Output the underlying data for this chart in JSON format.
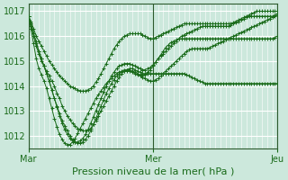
{
  "bg_color": "#cce8dc",
  "grid_color": "#ffffff",
  "line_color": "#1a6b1a",
  "xlabel": "Pression niveau de la mer( hPa )",
  "ylim": [
    1011.5,
    1017.3
  ],
  "yticks": [
    1012,
    1013,
    1014,
    1015,
    1016,
    1017
  ],
  "xtick_labels": [
    "Mar",
    "Mer",
    "Jeu"
  ],
  "xtick_positions": [
    0,
    48,
    96
  ],
  "xlim": [
    0,
    96
  ],
  "vline_positions": [
    0,
    48,
    96
  ],
  "n_total": 97,
  "series": [
    [
      1016.8,
      1016.6,
      1016.3,
      1016.0,
      1015.8,
      1015.6,
      1015.4,
      1015.2,
      1015.0,
      1014.85,
      1014.7,
      1014.55,
      1014.4,
      1014.3,
      1014.2,
      1014.1,
      1014.0,
      1013.95,
      1013.9,
      1013.85,
      1013.8,
      1013.8,
      1013.8,
      1013.85,
      1013.9,
      1014.0,
      1014.15,
      1014.3,
      1014.5,
      1014.7,
      1014.9,
      1015.1,
      1015.3,
      1015.5,
      1015.65,
      1015.8,
      1015.9,
      1016.0,
      1016.05,
      1016.1,
      1016.1,
      1016.1,
      1016.1,
      1016.1,
      1016.05,
      1016.0,
      1015.95,
      1015.9,
      1015.9,
      1015.95,
      1016.0,
      1016.05,
      1016.1,
      1016.15,
      1016.2,
      1016.25,
      1016.3,
      1016.35,
      1016.4,
      1016.45,
      1016.5,
      1016.5,
      1016.5,
      1016.5,
      1016.5,
      1016.5,
      1016.5,
      1016.5,
      1016.5,
      1016.5,
      1016.5,
      1016.5,
      1016.5,
      1016.5,
      1016.5,
      1016.5,
      1016.5,
      1016.5,
      1016.5,
      1016.55,
      1016.6,
      1016.65,
      1016.7,
      1016.75,
      1016.8,
      1016.85,
      1016.9,
      1016.95,
      1017.0,
      1017.0,
      1017.0,
      1017.0,
      1017.0,
      1017.0,
      1017.0,
      1017.0,
      1017.0
    ],
    [
      1016.8,
      1016.4,
      1016.0,
      1015.6,
      1015.3,
      1015.0,
      1014.8,
      1014.6,
      1014.4,
      1014.2,
      1014.0,
      1013.7,
      1013.5,
      1013.2,
      1013.0,
      1012.8,
      1012.65,
      1012.5,
      1012.4,
      1012.3,
      1012.25,
      1012.2,
      1012.2,
      1012.25,
      1012.3,
      1012.45,
      1012.6,
      1012.8,
      1013.0,
      1013.2,
      1013.4,
      1013.6,
      1013.8,
      1014.0,
      1014.2,
      1014.35,
      1014.5,
      1014.6,
      1014.65,
      1014.7,
      1014.7,
      1014.65,
      1014.6,
      1014.55,
      1014.5,
      1014.5,
      1014.5,
      1014.5,
      1014.5,
      1014.5,
      1014.5,
      1014.5,
      1014.5,
      1014.5,
      1014.5,
      1014.5,
      1014.5,
      1014.5,
      1014.5,
      1014.5,
      1014.5,
      1014.45,
      1014.4,
      1014.35,
      1014.3,
      1014.25,
      1014.2,
      1014.15,
      1014.1,
      1014.1,
      1014.1,
      1014.1,
      1014.1,
      1014.1,
      1014.1,
      1014.1,
      1014.1,
      1014.1,
      1014.1,
      1014.1,
      1014.1,
      1014.1,
      1014.1,
      1014.1,
      1014.1,
      1014.1,
      1014.1,
      1014.1,
      1014.1,
      1014.1,
      1014.1,
      1014.1,
      1014.1,
      1014.1,
      1014.1,
      1014.1,
      1014.1
    ],
    [
      1016.8,
      1016.5,
      1016.1,
      1015.7,
      1015.4,
      1015.1,
      1014.8,
      1014.5,
      1014.2,
      1013.85,
      1013.5,
      1013.2,
      1012.9,
      1012.6,
      1012.4,
      1012.2,
      1012.0,
      1011.85,
      1011.75,
      1011.7,
      1011.7,
      1011.75,
      1011.85,
      1012.0,
      1012.2,
      1012.45,
      1012.7,
      1012.95,
      1013.2,
      1013.45,
      1013.7,
      1013.9,
      1014.1,
      1014.25,
      1014.4,
      1014.5,
      1014.55,
      1014.6,
      1014.6,
      1014.6,
      1014.55,
      1014.5,
      1014.45,
      1014.4,
      1014.35,
      1014.3,
      1014.25,
      1014.2,
      1014.2,
      1014.25,
      1014.3,
      1014.4,
      1014.5,
      1014.6,
      1014.7,
      1014.8,
      1014.9,
      1015.0,
      1015.1,
      1015.2,
      1015.3,
      1015.4,
      1015.45,
      1015.5,
      1015.5,
      1015.5,
      1015.5,
      1015.5,
      1015.5,
      1015.5,
      1015.55,
      1015.6,
      1015.65,
      1015.7,
      1015.75,
      1015.8,
      1015.85,
      1015.9,
      1015.95,
      1016.0,
      1016.05,
      1016.1,
      1016.15,
      1016.2,
      1016.25,
      1016.3,
      1016.35,
      1016.4,
      1016.45,
      1016.5,
      1016.55,
      1016.6,
      1016.65,
      1016.7,
      1016.75,
      1016.8,
      1016.85
    ],
    [
      1016.8,
      1016.5,
      1016.1,
      1015.8,
      1015.4,
      1015.1,
      1014.8,
      1014.5,
      1014.2,
      1013.85,
      1013.5,
      1013.15,
      1012.8,
      1012.5,
      1012.25,
      1012.05,
      1011.9,
      1011.8,
      1011.75,
      1011.75,
      1011.8,
      1011.9,
      1012.05,
      1012.25,
      1012.5,
      1012.75,
      1013.0,
      1013.25,
      1013.5,
      1013.75,
      1014.0,
      1014.2,
      1014.4,
      1014.55,
      1014.7,
      1014.8,
      1014.85,
      1014.9,
      1014.9,
      1014.9,
      1014.85,
      1014.8,
      1014.75,
      1014.7,
      1014.65,
      1014.65,
      1014.7,
      1014.75,
      1014.85,
      1014.95,
      1015.1,
      1015.25,
      1015.4,
      1015.55,
      1015.65,
      1015.75,
      1015.8,
      1015.85,
      1015.9,
      1015.9,
      1015.9,
      1015.9,
      1015.9,
      1015.9,
      1015.9,
      1015.9,
      1015.9,
      1015.9,
      1015.9,
      1015.9,
      1015.9,
      1015.9,
      1015.9,
      1015.9,
      1015.9,
      1015.9,
      1015.9,
      1015.9,
      1015.9,
      1015.9,
      1015.9,
      1015.9,
      1015.9,
      1015.9,
      1015.9,
      1015.9,
      1015.9,
      1015.9,
      1015.9,
      1015.9,
      1015.9,
      1015.9,
      1015.9,
      1015.9,
      1015.9,
      1015.95,
      1016.0
    ],
    [
      1016.8,
      1016.3,
      1015.7,
      1015.1,
      1014.7,
      1014.45,
      1014.2,
      1013.9,
      1013.5,
      1013.1,
      1012.7,
      1012.35,
      1012.05,
      1011.85,
      1011.7,
      1011.65,
      1011.65,
      1011.75,
      1011.9,
      1012.1,
      1012.3,
      1012.5,
      1012.7,
      1012.9,
      1013.1,
      1013.3,
      1013.5,
      1013.65,
      1013.8,
      1013.95,
      1014.1,
      1014.2,
      1014.3,
      1014.4,
      1014.5,
      1014.55,
      1014.6,
      1014.65,
      1014.65,
      1014.65,
      1014.6,
      1014.55,
      1014.5,
      1014.45,
      1014.4,
      1014.45,
      1014.55,
      1014.65,
      1014.8,
      1014.95,
      1015.1,
      1015.2,
      1015.3,
      1015.4,
      1015.5,
      1015.6,
      1015.7,
      1015.8,
      1015.9,
      1016.0,
      1016.05,
      1016.1,
      1016.15,
      1016.2,
      1016.25,
      1016.3,
      1016.35,
      1016.4,
      1016.4,
      1016.4,
      1016.4,
      1016.4,
      1016.4,
      1016.4,
      1016.4,
      1016.4,
      1016.4,
      1016.4,
      1016.45,
      1016.5,
      1016.55,
      1016.6,
      1016.65,
      1016.7,
      1016.75,
      1016.8,
      1016.8,
      1016.8,
      1016.8,
      1016.8,
      1016.8,
      1016.8,
      1016.8,
      1016.8,
      1016.8,
      1016.85,
      1016.9
    ]
  ]
}
